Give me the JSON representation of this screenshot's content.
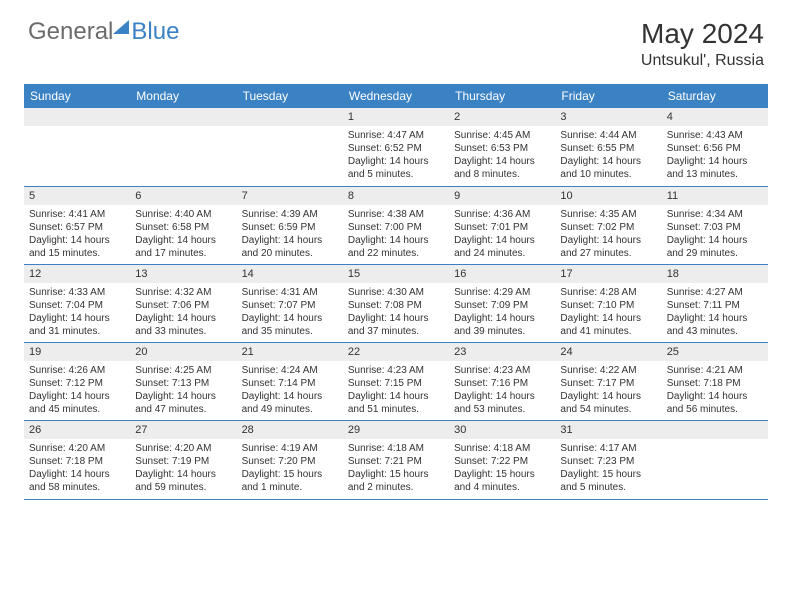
{
  "logo": {
    "part1": "General",
    "part2": "Blue"
  },
  "title": {
    "month_year": "May 2024",
    "location": "Untsukul', Russia"
  },
  "styling": {
    "header_bg": "#3b82c4",
    "header_text": "#ffffff",
    "daynum_bg": "#ededed",
    "cell_border": "#3b82c4",
    "body_text": "#333333",
    "font_size_header": 12,
    "font_size_daynum": 11,
    "font_size_details": 10
  },
  "day_names": [
    "Sunday",
    "Monday",
    "Tuesday",
    "Wednesday",
    "Thursday",
    "Friday",
    "Saturday"
  ],
  "weeks": [
    [
      null,
      null,
      null,
      {
        "n": "1",
        "sr": "Sunrise: 4:47 AM",
        "ss": "Sunset: 6:52 PM",
        "d1": "Daylight: 14 hours",
        "d2": "and 5 minutes."
      },
      {
        "n": "2",
        "sr": "Sunrise: 4:45 AM",
        "ss": "Sunset: 6:53 PM",
        "d1": "Daylight: 14 hours",
        "d2": "and 8 minutes."
      },
      {
        "n": "3",
        "sr": "Sunrise: 4:44 AM",
        "ss": "Sunset: 6:55 PM",
        "d1": "Daylight: 14 hours",
        "d2": "and 10 minutes."
      },
      {
        "n": "4",
        "sr": "Sunrise: 4:43 AM",
        "ss": "Sunset: 6:56 PM",
        "d1": "Daylight: 14 hours",
        "d2": "and 13 minutes."
      }
    ],
    [
      {
        "n": "5",
        "sr": "Sunrise: 4:41 AM",
        "ss": "Sunset: 6:57 PM",
        "d1": "Daylight: 14 hours",
        "d2": "and 15 minutes."
      },
      {
        "n": "6",
        "sr": "Sunrise: 4:40 AM",
        "ss": "Sunset: 6:58 PM",
        "d1": "Daylight: 14 hours",
        "d2": "and 17 minutes."
      },
      {
        "n": "7",
        "sr": "Sunrise: 4:39 AM",
        "ss": "Sunset: 6:59 PM",
        "d1": "Daylight: 14 hours",
        "d2": "and 20 minutes."
      },
      {
        "n": "8",
        "sr": "Sunrise: 4:38 AM",
        "ss": "Sunset: 7:00 PM",
        "d1": "Daylight: 14 hours",
        "d2": "and 22 minutes."
      },
      {
        "n": "9",
        "sr": "Sunrise: 4:36 AM",
        "ss": "Sunset: 7:01 PM",
        "d1": "Daylight: 14 hours",
        "d2": "and 24 minutes."
      },
      {
        "n": "10",
        "sr": "Sunrise: 4:35 AM",
        "ss": "Sunset: 7:02 PM",
        "d1": "Daylight: 14 hours",
        "d2": "and 27 minutes."
      },
      {
        "n": "11",
        "sr": "Sunrise: 4:34 AM",
        "ss": "Sunset: 7:03 PM",
        "d1": "Daylight: 14 hours",
        "d2": "and 29 minutes."
      }
    ],
    [
      {
        "n": "12",
        "sr": "Sunrise: 4:33 AM",
        "ss": "Sunset: 7:04 PM",
        "d1": "Daylight: 14 hours",
        "d2": "and 31 minutes."
      },
      {
        "n": "13",
        "sr": "Sunrise: 4:32 AM",
        "ss": "Sunset: 7:06 PM",
        "d1": "Daylight: 14 hours",
        "d2": "and 33 minutes."
      },
      {
        "n": "14",
        "sr": "Sunrise: 4:31 AM",
        "ss": "Sunset: 7:07 PM",
        "d1": "Daylight: 14 hours",
        "d2": "and 35 minutes."
      },
      {
        "n": "15",
        "sr": "Sunrise: 4:30 AM",
        "ss": "Sunset: 7:08 PM",
        "d1": "Daylight: 14 hours",
        "d2": "and 37 minutes."
      },
      {
        "n": "16",
        "sr": "Sunrise: 4:29 AM",
        "ss": "Sunset: 7:09 PM",
        "d1": "Daylight: 14 hours",
        "d2": "and 39 minutes."
      },
      {
        "n": "17",
        "sr": "Sunrise: 4:28 AM",
        "ss": "Sunset: 7:10 PM",
        "d1": "Daylight: 14 hours",
        "d2": "and 41 minutes."
      },
      {
        "n": "18",
        "sr": "Sunrise: 4:27 AM",
        "ss": "Sunset: 7:11 PM",
        "d1": "Daylight: 14 hours",
        "d2": "and 43 minutes."
      }
    ],
    [
      {
        "n": "19",
        "sr": "Sunrise: 4:26 AM",
        "ss": "Sunset: 7:12 PM",
        "d1": "Daylight: 14 hours",
        "d2": "and 45 minutes."
      },
      {
        "n": "20",
        "sr": "Sunrise: 4:25 AM",
        "ss": "Sunset: 7:13 PM",
        "d1": "Daylight: 14 hours",
        "d2": "and 47 minutes."
      },
      {
        "n": "21",
        "sr": "Sunrise: 4:24 AM",
        "ss": "Sunset: 7:14 PM",
        "d1": "Daylight: 14 hours",
        "d2": "and 49 minutes."
      },
      {
        "n": "22",
        "sr": "Sunrise: 4:23 AM",
        "ss": "Sunset: 7:15 PM",
        "d1": "Daylight: 14 hours",
        "d2": "and 51 minutes."
      },
      {
        "n": "23",
        "sr": "Sunrise: 4:23 AM",
        "ss": "Sunset: 7:16 PM",
        "d1": "Daylight: 14 hours",
        "d2": "and 53 minutes."
      },
      {
        "n": "24",
        "sr": "Sunrise: 4:22 AM",
        "ss": "Sunset: 7:17 PM",
        "d1": "Daylight: 14 hours",
        "d2": "and 54 minutes."
      },
      {
        "n": "25",
        "sr": "Sunrise: 4:21 AM",
        "ss": "Sunset: 7:18 PM",
        "d1": "Daylight: 14 hours",
        "d2": "and 56 minutes."
      }
    ],
    [
      {
        "n": "26",
        "sr": "Sunrise: 4:20 AM",
        "ss": "Sunset: 7:18 PM",
        "d1": "Daylight: 14 hours",
        "d2": "and 58 minutes."
      },
      {
        "n": "27",
        "sr": "Sunrise: 4:20 AM",
        "ss": "Sunset: 7:19 PM",
        "d1": "Daylight: 14 hours",
        "d2": "and 59 minutes."
      },
      {
        "n": "28",
        "sr": "Sunrise: 4:19 AM",
        "ss": "Sunset: 7:20 PM",
        "d1": "Daylight: 15 hours",
        "d2": "and 1 minute."
      },
      {
        "n": "29",
        "sr": "Sunrise: 4:18 AM",
        "ss": "Sunset: 7:21 PM",
        "d1": "Daylight: 15 hours",
        "d2": "and 2 minutes."
      },
      {
        "n": "30",
        "sr": "Sunrise: 4:18 AM",
        "ss": "Sunset: 7:22 PM",
        "d1": "Daylight: 15 hours",
        "d2": "and 4 minutes."
      },
      {
        "n": "31",
        "sr": "Sunrise: 4:17 AM",
        "ss": "Sunset: 7:23 PM",
        "d1": "Daylight: 15 hours",
        "d2": "and 5 minutes."
      },
      null
    ]
  ]
}
